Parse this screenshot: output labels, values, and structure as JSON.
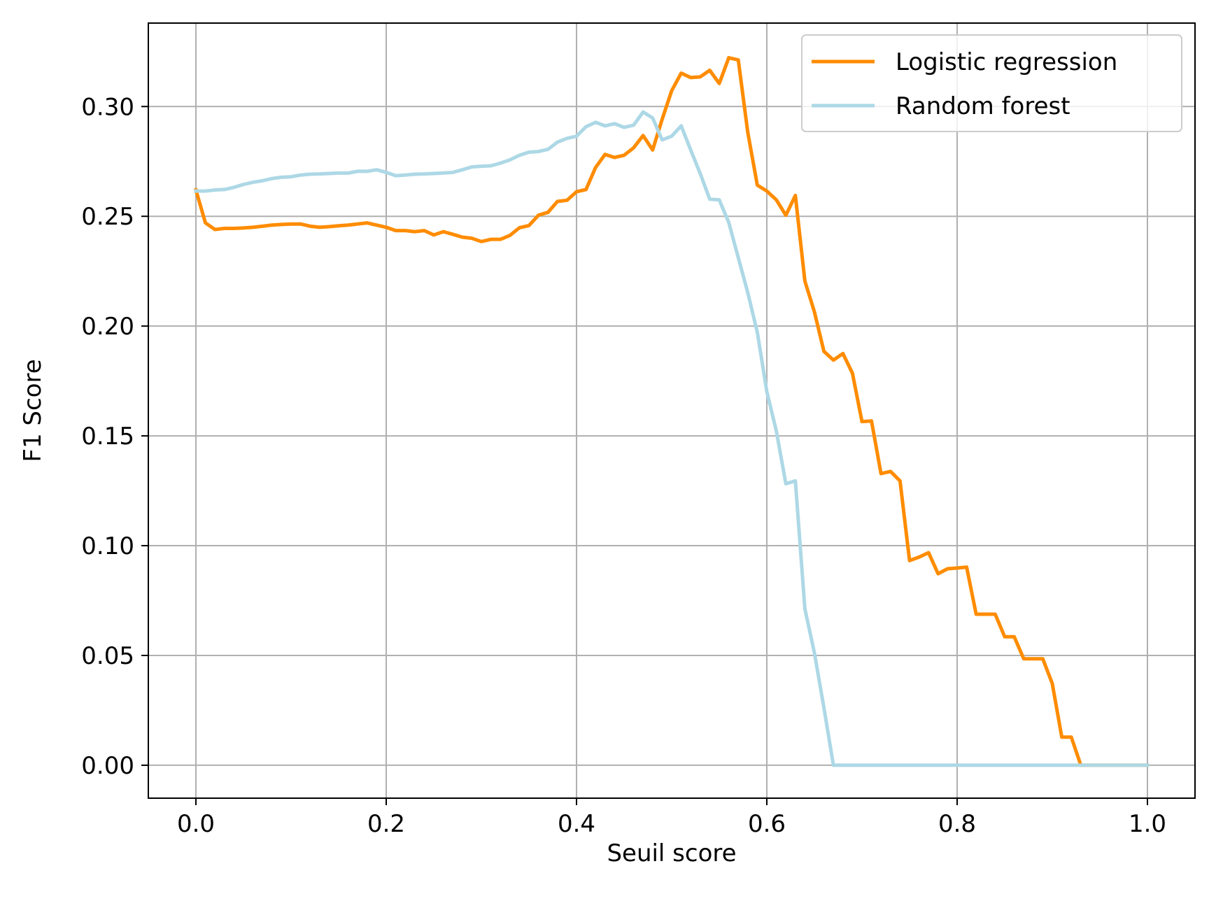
{
  "chart_data": {
    "type": "line",
    "title": "",
    "xlabel": "Seuil score",
    "ylabel": "F1 Score",
    "xlim": [
      -0.05,
      1.05
    ],
    "ylim": [
      -0.015,
      0.338
    ],
    "grid": true,
    "legend_position": "top-right",
    "xticks": [
      0.0,
      0.2,
      0.4,
      0.6,
      0.8,
      1.0
    ],
    "xtick_labels": [
      "0.0",
      "0.2",
      "0.4",
      "0.6",
      "0.8",
      "1.0"
    ],
    "yticks": [
      0.0,
      0.05,
      0.1,
      0.15,
      0.2,
      0.25,
      0.3
    ],
    "ytick_labels": [
      "0.00",
      "0.05",
      "0.10",
      "0.15",
      "0.20",
      "0.25",
      "0.30"
    ],
    "series": [
      {
        "name": "Logistic regression",
        "color": "#ff8c00",
        "x": [
          0.0,
          0.01,
          0.02,
          0.03,
          0.04,
          0.05,
          0.06,
          0.07,
          0.08,
          0.09,
          0.1,
          0.11,
          0.12,
          0.13,
          0.14,
          0.15,
          0.16,
          0.17,
          0.18,
          0.19,
          0.2,
          0.21,
          0.22,
          0.23,
          0.24,
          0.25,
          0.26,
          0.27,
          0.28,
          0.29,
          0.3,
          0.31,
          0.32,
          0.33,
          0.34,
          0.35,
          0.36,
          0.37,
          0.38,
          0.39,
          0.4,
          0.41,
          0.42,
          0.43,
          0.44,
          0.45,
          0.46,
          0.47,
          0.48,
          0.49,
          0.5,
          0.51,
          0.52,
          0.53,
          0.54,
          0.55,
          0.56,
          0.57,
          0.58,
          0.59,
          0.6,
          0.61,
          0.62,
          0.63,
          0.64,
          0.65,
          0.66,
          0.67,
          0.68,
          0.69,
          0.7,
          0.71,
          0.72,
          0.73,
          0.74,
          0.75,
          0.76,
          0.77,
          0.78,
          0.79,
          0.8,
          0.81,
          0.82,
          0.83,
          0.84,
          0.85,
          0.86,
          0.87,
          0.88,
          0.89,
          0.9,
          0.91,
          0.92,
          0.93,
          0.94,
          0.95,
          0.96,
          0.97,
          0.98,
          0.99,
          1.0
        ],
        "values": [
          0.262,
          0.247,
          0.244,
          0.2445,
          0.2445,
          0.2447,
          0.245,
          0.2455,
          0.246,
          0.2463,
          0.2465,
          0.2465,
          0.2455,
          0.245,
          0.2453,
          0.2457,
          0.246,
          0.2465,
          0.247,
          0.246,
          0.245,
          0.2435,
          0.2435,
          0.243,
          0.2435,
          0.2415,
          0.243,
          0.2418,
          0.2405,
          0.24,
          0.2385,
          0.2395,
          0.2395,
          0.2413,
          0.2448,
          0.2458,
          0.2505,
          0.2518,
          0.2568,
          0.2573,
          0.2612,
          0.2622,
          0.2722,
          0.2782,
          0.2768,
          0.2778,
          0.2812,
          0.2868,
          0.2802,
          0.2942,
          0.3072,
          0.3152,
          0.3132,
          0.3135,
          0.3165,
          0.3105,
          0.3222,
          0.3212,
          0.2882,
          0.2642,
          0.2615,
          0.2575,
          0.2505,
          0.2595,
          0.2205,
          0.2065,
          0.1885,
          0.1845,
          0.1875,
          0.1785,
          0.1565,
          0.1568,
          0.1328,
          0.1338,
          0.1295,
          0.0932,
          0.0948,
          0.0968,
          0.0872,
          0.0895,
          0.0898,
          0.0902,
          0.0688,
          0.0688,
          0.0688,
          0.0585,
          0.0585,
          0.0485,
          0.0485,
          0.0485,
          0.0372,
          0.0128,
          0.0128,
          0.0,
          0.0,
          0.0,
          0.0,
          0.0,
          0.0,
          0.0,
          0.0
        ]
      },
      {
        "name": "Random forest",
        "color": "#add8e6",
        "x": [
          0.0,
          0.01,
          0.02,
          0.03,
          0.04,
          0.05,
          0.06,
          0.07,
          0.08,
          0.09,
          0.1,
          0.11,
          0.12,
          0.13,
          0.14,
          0.15,
          0.16,
          0.17,
          0.18,
          0.19,
          0.2,
          0.21,
          0.22,
          0.23,
          0.24,
          0.25,
          0.26,
          0.27,
          0.28,
          0.29,
          0.3,
          0.31,
          0.32,
          0.33,
          0.34,
          0.35,
          0.36,
          0.37,
          0.38,
          0.39,
          0.4,
          0.41,
          0.42,
          0.43,
          0.44,
          0.45,
          0.46,
          0.47,
          0.48,
          0.49,
          0.5,
          0.51,
          0.52,
          0.53,
          0.54,
          0.55,
          0.56,
          0.57,
          0.58,
          0.59,
          0.6,
          0.61,
          0.62,
          0.63,
          0.64,
          0.65,
          0.66,
          0.67,
          0.68,
          0.69,
          0.7,
          0.71,
          0.72,
          0.73,
          0.74,
          0.75,
          0.76,
          0.77,
          0.78,
          0.79,
          0.8,
          0.81,
          0.82,
          0.83,
          0.84,
          0.85,
          0.86,
          0.87,
          0.88,
          0.89,
          0.9,
          0.91,
          0.92,
          0.93,
          0.94,
          0.95,
          0.96,
          0.97,
          0.98,
          0.99,
          1.0
        ],
        "values": [
          0.2615,
          0.2615,
          0.262,
          0.2622,
          0.2632,
          0.2645,
          0.2655,
          0.2662,
          0.2672,
          0.2678,
          0.268,
          0.2688,
          0.2692,
          0.2693,
          0.2695,
          0.2697,
          0.2697,
          0.2705,
          0.2705,
          0.2712,
          0.27,
          0.2685,
          0.2688,
          0.2692,
          0.2693,
          0.2695,
          0.2697,
          0.27,
          0.2712,
          0.2725,
          0.2728,
          0.273,
          0.2742,
          0.2757,
          0.2778,
          0.2792,
          0.2795,
          0.2805,
          0.2838,
          0.2855,
          0.2865,
          0.2908,
          0.2928,
          0.2912,
          0.2922,
          0.2905,
          0.2915,
          0.2975,
          0.2948,
          0.2848,
          0.2865,
          0.2912,
          0.2802,
          0.2695,
          0.2578,
          0.2575,
          0.2472,
          0.2312,
          0.2152,
          0.1972,
          0.1702,
          0.1522,
          0.1282,
          0.1295,
          0.0712,
          0.0512,
          0.0262,
          0.0,
          0.0,
          0.0,
          0.0,
          0.0,
          0.0,
          0.0,
          0.0,
          0.0,
          0.0,
          0.0,
          0.0,
          0.0,
          0.0,
          0.0,
          0.0,
          0.0,
          0.0,
          0.0,
          0.0,
          0.0,
          0.0,
          0.0,
          0.0,
          0.0,
          0.0,
          0.0,
          0.0,
          0.0,
          0.0,
          0.0,
          0.0,
          0.0,
          0.0
        ]
      }
    ]
  }
}
